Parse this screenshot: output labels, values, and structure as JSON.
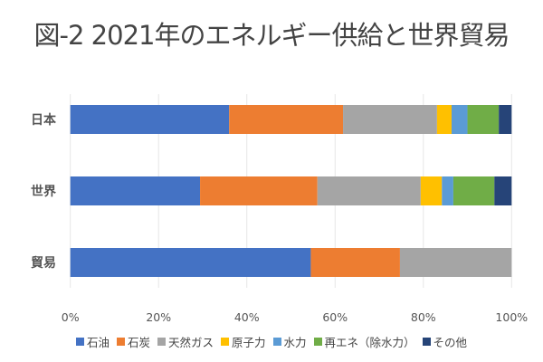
{
  "chart_data": {
    "type": "bar",
    "orientation": "horizontal",
    "stacked": "percent",
    "title": "図-2 2021年のエネルギー供給と世界貿易",
    "categories": [
      "日本",
      "世界",
      "貿易"
    ],
    "series": [
      {
        "name": "石油",
        "color": "#4472C4",
        "values": [
          36.0,
          29.4,
          54.5
        ]
      },
      {
        "name": "石炭",
        "color": "#ED7D31",
        "values": [
          25.8,
          26.6,
          20.2
        ]
      },
      {
        "name": "天然ガス",
        "color": "#A5A5A5",
        "values": [
          21.3,
          23.4,
          25.3
        ]
      },
      {
        "name": "原子力",
        "color": "#FFC000",
        "values": [
          3.3,
          4.8,
          0
        ]
      },
      {
        "name": "水力",
        "color": "#5B9BD5",
        "values": [
          3.6,
          2.6,
          0
        ]
      },
      {
        "name": "再エネ（除水力）",
        "color": "#70AD47",
        "values": [
          7.1,
          9.3,
          0
        ]
      },
      {
        "name": "その他",
        "color": "#264478",
        "values": [
          2.9,
          3.9,
          0
        ]
      }
    ],
    "xlim": [
      0,
      100
    ],
    "xticks": [
      "0%",
      "20%",
      "40%",
      "60%",
      "80%",
      "100%"
    ],
    "grid": true,
    "legend": "bottom"
  }
}
